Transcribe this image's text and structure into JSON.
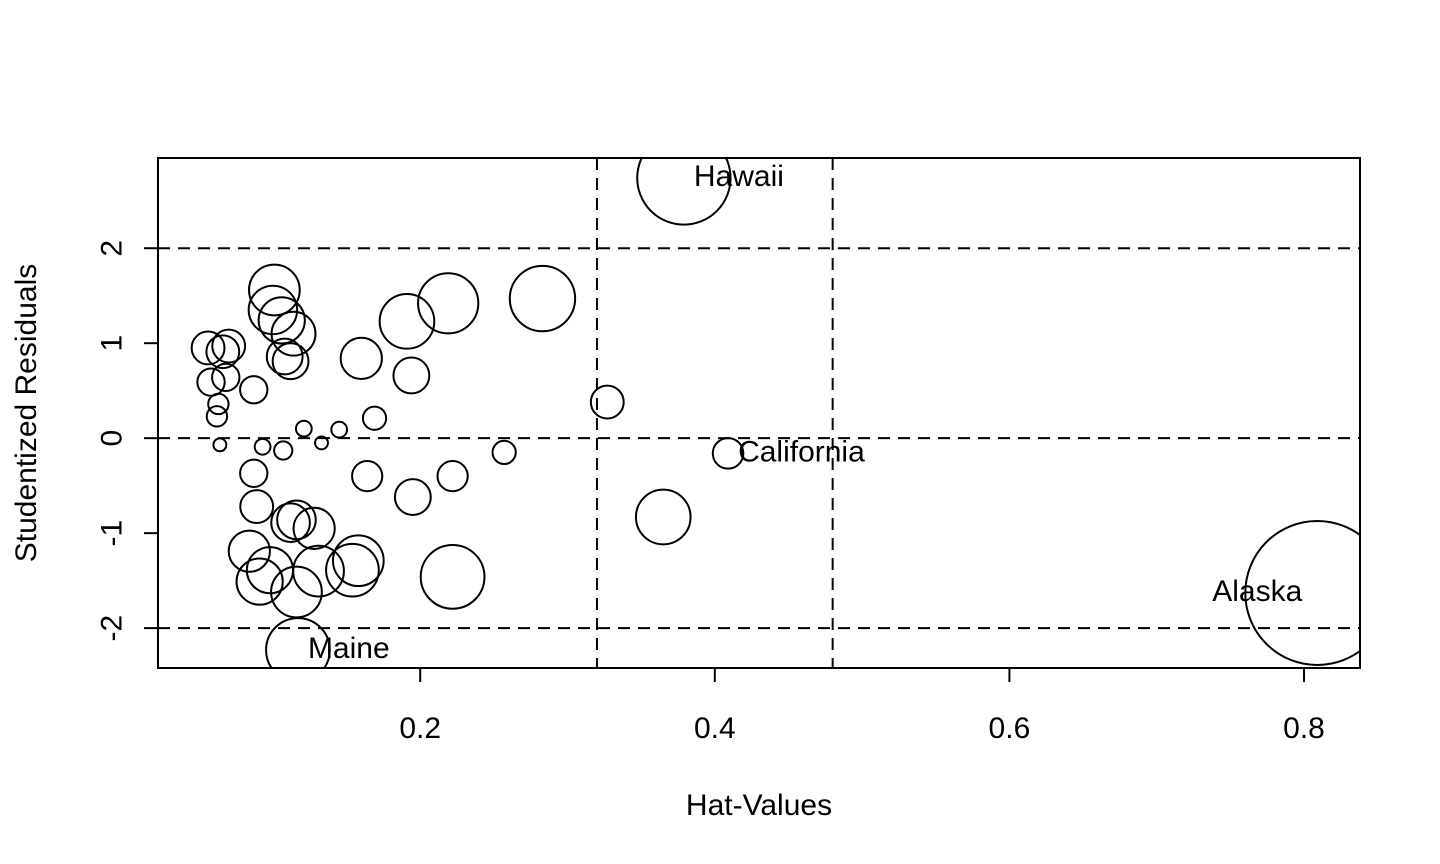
{
  "chart_data": {
    "type": "scatter",
    "xlabel": "Hat-Values",
    "ylabel": "Studentized Residuals",
    "xlim": [
      0.022,
      0.838
    ],
    "ylim": [
      -2.42,
      2.95
    ],
    "xticks": [
      0.2,
      0.4,
      0.6,
      0.8
    ],
    "xtick_labels": [
      "0.2",
      "0.4",
      "0.6",
      "0.8"
    ],
    "yticks": [
      -2,
      -1,
      0,
      1,
      2
    ],
    "ytick_labels": [
      "-2",
      "-1",
      "0",
      "1",
      "2"
    ],
    "hlines": [
      -2,
      0,
      2
    ],
    "vlines": [
      0.32,
      0.48
    ],
    "grid": false,
    "legend": "none",
    "bubble_size": "Cook's distance (relative)",
    "points": [
      {
        "x": 0.809,
        "y": -1.63,
        "size": 1.0,
        "label": "Alaska"
      },
      {
        "x": 0.379,
        "y": 2.74,
        "size": 0.42,
        "label": "Hawaii"
      },
      {
        "x": 0.409,
        "y": -0.16,
        "size": 0.045,
        "label": "California"
      },
      {
        "x": 0.117,
        "y": -2.23,
        "size": 0.196,
        "label": "Maine"
      },
      {
        "x": 0.283,
        "y": 1.47,
        "size": 0.206,
        "label": ""
      },
      {
        "x": 0.219,
        "y": 1.42,
        "size": 0.175,
        "label": ""
      },
      {
        "x": 0.222,
        "y": -1.46,
        "size": 0.196,
        "label": ""
      },
      {
        "x": 0.365,
        "y": -0.83,
        "size": 0.144,
        "label": ""
      },
      {
        "x": 0.101,
        "y": 1.56,
        "size": 0.124,
        "label": ""
      },
      {
        "x": 0.1,
        "y": 1.35,
        "size": 0.113,
        "label": ""
      },
      {
        "x": 0.106,
        "y": 1.24,
        "size": 0.103,
        "label": ""
      },
      {
        "x": 0.114,
        "y": 1.1,
        "size": 0.093,
        "label": ""
      },
      {
        "x": 0.191,
        "y": 1.23,
        "size": 0.144,
        "label": ""
      },
      {
        "x": 0.16,
        "y": 0.84,
        "size": 0.082,
        "label": ""
      },
      {
        "x": 0.108,
        "y": 0.86,
        "size": 0.062,
        "label": ""
      },
      {
        "x": 0.112,
        "y": 0.81,
        "size": 0.062,
        "label": ""
      },
      {
        "x": 0.194,
        "y": 0.66,
        "size": 0.062,
        "label": ""
      },
      {
        "x": 0.056,
        "y": 0.95,
        "size": 0.052,
        "label": ""
      },
      {
        "x": 0.07,
        "y": 0.97,
        "size": 0.052,
        "label": ""
      },
      {
        "x": 0.066,
        "y": 0.91,
        "size": 0.052,
        "label": ""
      },
      {
        "x": 0.058,
        "y": 0.59,
        "size": 0.036,
        "label": ""
      },
      {
        "x": 0.068,
        "y": 0.64,
        "size": 0.036,
        "label": ""
      },
      {
        "x": 0.087,
        "y": 0.51,
        "size": 0.036,
        "label": ""
      },
      {
        "x": 0.063,
        "y": 0.36,
        "size": 0.02,
        "label": ""
      },
      {
        "x": 0.062,
        "y": 0.23,
        "size": 0.02,
        "label": ""
      },
      {
        "x": 0.327,
        "y": 0.38,
        "size": 0.052,
        "label": ""
      },
      {
        "x": 0.169,
        "y": 0.21,
        "size": 0.026,
        "label": ""
      },
      {
        "x": 0.145,
        "y": 0.09,
        "size": 0.012,
        "label": ""
      },
      {
        "x": 0.121,
        "y": 0.1,
        "size": 0.012,
        "label": ""
      },
      {
        "x": 0.133,
        "y": -0.05,
        "size": 0.008,
        "label": ""
      },
      {
        "x": 0.107,
        "y": -0.13,
        "size": 0.016,
        "label": ""
      },
      {
        "x": 0.093,
        "y": -0.09,
        "size": 0.012,
        "label": ""
      },
      {
        "x": 0.064,
        "y": -0.07,
        "size": 0.008,
        "label": ""
      },
      {
        "x": 0.257,
        "y": -0.15,
        "size": 0.026,
        "label": ""
      },
      {
        "x": 0.087,
        "y": -0.37,
        "size": 0.036,
        "label": ""
      },
      {
        "x": 0.164,
        "y": -0.4,
        "size": 0.044,
        "label": ""
      },
      {
        "x": 0.222,
        "y": -0.4,
        "size": 0.044,
        "label": ""
      },
      {
        "x": 0.195,
        "y": -0.62,
        "size": 0.062,
        "label": ""
      },
      {
        "x": 0.089,
        "y": -0.72,
        "size": 0.052,
        "label": ""
      },
      {
        "x": 0.112,
        "y": -0.89,
        "size": 0.072,
        "label": ""
      },
      {
        "x": 0.116,
        "y": -0.86,
        "size": 0.072,
        "label": ""
      },
      {
        "x": 0.128,
        "y": -0.95,
        "size": 0.082,
        "label": ""
      },
      {
        "x": 0.084,
        "y": -1.19,
        "size": 0.082,
        "label": ""
      },
      {
        "x": 0.098,
        "y": -1.39,
        "size": 0.103,
        "label": ""
      },
      {
        "x": 0.091,
        "y": -1.51,
        "size": 0.103,
        "label": ""
      },
      {
        "x": 0.116,
        "y": -1.62,
        "size": 0.124,
        "label": ""
      },
      {
        "x": 0.131,
        "y": -1.4,
        "size": 0.124,
        "label": ""
      },
      {
        "x": 0.158,
        "y": -1.29,
        "size": 0.124,
        "label": ""
      },
      {
        "x": 0.154,
        "y": -1.39,
        "size": 0.134,
        "label": ""
      }
    ]
  }
}
